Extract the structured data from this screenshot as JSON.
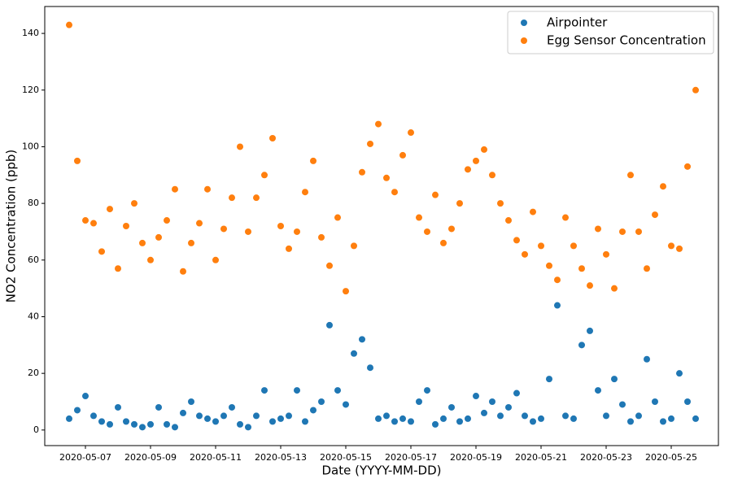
{
  "chart_data": {
    "type": "scatter",
    "xlabel": "Date (YYYY-MM-DD)",
    "ylabel": "NO2 Concentration (ppb)",
    "x": [
      "2020-05-06T12:00",
      "2020-05-06T18:00",
      "2020-05-07T00:00",
      "2020-05-07T06:00",
      "2020-05-07T12:00",
      "2020-05-07T18:00",
      "2020-05-08T00:00",
      "2020-05-08T06:00",
      "2020-05-08T12:00",
      "2020-05-08T18:00",
      "2020-05-09T00:00",
      "2020-05-09T06:00",
      "2020-05-09T12:00",
      "2020-05-09T18:00",
      "2020-05-10T00:00",
      "2020-05-10T06:00",
      "2020-05-10T12:00",
      "2020-05-10T18:00",
      "2020-05-11T00:00",
      "2020-05-11T06:00",
      "2020-05-11T12:00",
      "2020-05-11T18:00",
      "2020-05-12T00:00",
      "2020-05-12T06:00",
      "2020-05-12T12:00",
      "2020-05-12T18:00",
      "2020-05-13T00:00",
      "2020-05-13T06:00",
      "2020-05-13T12:00",
      "2020-05-13T18:00",
      "2020-05-14T00:00",
      "2020-05-14T06:00",
      "2020-05-14T12:00",
      "2020-05-14T18:00",
      "2020-05-15T00:00",
      "2020-05-15T06:00",
      "2020-05-15T12:00",
      "2020-05-15T18:00",
      "2020-05-16T00:00",
      "2020-05-16T06:00",
      "2020-05-16T12:00",
      "2020-05-16T18:00",
      "2020-05-17T00:00",
      "2020-05-17T06:00",
      "2020-05-17T12:00",
      "2020-05-17T18:00",
      "2020-05-18T00:00",
      "2020-05-18T06:00",
      "2020-05-18T12:00",
      "2020-05-18T18:00",
      "2020-05-19T00:00",
      "2020-05-19T06:00",
      "2020-05-19T12:00",
      "2020-05-19T18:00",
      "2020-05-20T00:00",
      "2020-05-20T06:00",
      "2020-05-20T12:00",
      "2020-05-20T18:00",
      "2020-05-21T00:00",
      "2020-05-21T06:00",
      "2020-05-21T12:00",
      "2020-05-21T18:00",
      "2020-05-22T00:00",
      "2020-05-22T06:00",
      "2020-05-22T12:00",
      "2020-05-22T18:00",
      "2020-05-23T00:00",
      "2020-05-23T06:00",
      "2020-05-23T12:00",
      "2020-05-23T18:00",
      "2020-05-24T00:00",
      "2020-05-24T06:00",
      "2020-05-24T12:00",
      "2020-05-24T18:00",
      "2020-05-25T00:00",
      "2020-05-25T06:00",
      "2020-05-25T12:00",
      "2020-05-25T18:00"
    ],
    "series": [
      {
        "name": "Airpointer",
        "color": "#1f77b4",
        "values": [
          4,
          7,
          12,
          5,
          3,
          2,
          8,
          3,
          2,
          1,
          2,
          8,
          2,
          1,
          6,
          10,
          5,
          4,
          3,
          5,
          8,
          2,
          1,
          5,
          14,
          3,
          4,
          5,
          14,
          3,
          7,
          10,
          37,
          14,
          9,
          27,
          32,
          22,
          4,
          5,
          3,
          4,
          3,
          10,
          14,
          2,
          4,
          8,
          3,
          4,
          12,
          6,
          10,
          5,
          8,
          13,
          5,
          3,
          4,
          18,
          44,
          5,
          4,
          30,
          35,
          14,
          5,
          18,
          9,
          3,
          5,
          25,
          10,
          3,
          4,
          20,
          10,
          4
        ]
      },
      {
        "name": "Egg Sensor Concentration",
        "color": "#ff7f0e",
        "values": [
          143,
          95,
          74,
          73,
          63,
          78,
          57,
          72,
          80,
          66,
          60,
          68,
          74,
          85,
          56,
          66,
          73,
          85,
          60,
          71,
          82,
          100,
          70,
          82,
          90,
          103,
          72,
          64,
          70,
          84,
          95,
          68,
          58,
          75,
          49,
          65,
          91,
          101,
          108,
          89,
          84,
          97,
          105,
          75,
          70,
          83,
          66,
          71,
          80,
          92,
          95,
          99,
          90,
          80,
          74,
          67,
          62,
          77,
          65,
          58,
          53,
          75,
          65,
          57,
          51,
          71,
          62,
          50,
          70,
          90,
          70,
          57,
          76,
          86,
          65,
          64,
          93,
          120
        ]
      }
    ],
    "xlim": [
      "2020-05-05T18:00",
      "2020-05-26T10:48"
    ],
    "xticks": [
      "2020-05-07",
      "2020-05-09",
      "2020-05-11",
      "2020-05-13",
      "2020-05-15",
      "2020-05-17",
      "2020-05-19",
      "2020-05-21",
      "2020-05-23",
      "2020-05-25"
    ],
    "ylim": [
      -5.5,
      149.5
    ],
    "yticks": [
      0,
      20,
      40,
      60,
      80,
      100,
      120,
      140
    ],
    "legend": "upper right"
  }
}
